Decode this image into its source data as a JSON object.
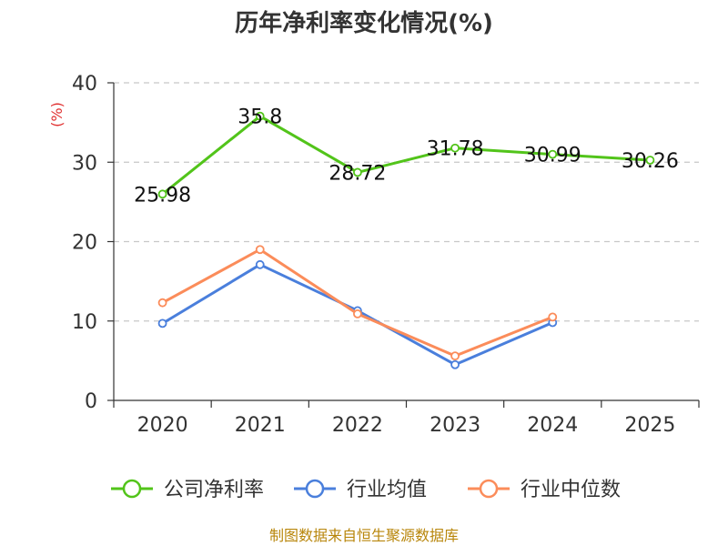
{
  "chart_data": {
    "type": "line",
    "title": "历年净利率变化情况(%)",
    "ylabel": "(%)",
    "xlabel": "",
    "categories": [
      "2020",
      "2021",
      "2022",
      "2023",
      "2024",
      "2025"
    ],
    "ylim": [
      0,
      40
    ],
    "yticks": [
      0,
      10,
      20,
      30,
      40
    ],
    "grid": true,
    "legend_position": "bottom",
    "series": [
      {
        "name": "公司净利率",
        "color": "#52c41a",
        "values": [
          25.98,
          35.8,
          28.72,
          31.78,
          30.99,
          30.26
        ],
        "labels": [
          "25.98",
          "35.8",
          "28.72",
          "31.78",
          "30.99",
          "30.26"
        ]
      },
      {
        "name": "行业均值",
        "color": "#4a7fdc",
        "values": [
          9.7,
          17.1,
          11.3,
          4.5,
          9.8,
          null
        ]
      },
      {
        "name": "行业中位数",
        "color": "#fb8c5a",
        "values": [
          12.3,
          19.0,
          10.9,
          5.6,
          10.5,
          null
        ]
      }
    ],
    "source": "制图数据来自恒生聚源数据库"
  }
}
